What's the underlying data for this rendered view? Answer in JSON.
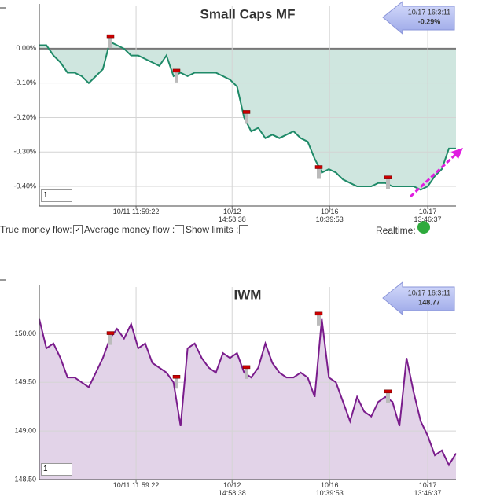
{
  "chart_data": [
    {
      "type": "area",
      "title": "Small Caps MF",
      "color": "#1f8a68",
      "fill": "#cfe6df",
      "annotation": [
        "10/17 16:3:11",
        "-0.29%"
      ],
      "range_input": "1",
      "values": [
        0.01,
        0.01,
        -0.02,
        -0.04,
        -0.07,
        -0.07,
        -0.08,
        -0.1,
        -0.08,
        -0.06,
        0.02,
        0.01,
        0.0,
        -0.02,
        -0.02,
        -0.03,
        -0.04,
        -0.05,
        -0.02,
        -0.08,
        -0.07,
        -0.08,
        -0.07,
        -0.07,
        -0.07,
        -0.07,
        -0.08,
        -0.09,
        -0.11,
        -0.2,
        -0.24,
        -0.23,
        -0.26,
        -0.25,
        -0.26,
        -0.25,
        -0.24,
        -0.26,
        -0.27,
        -0.32,
        -0.36,
        -0.35,
        -0.36,
        -0.38,
        -0.39,
        -0.4,
        -0.4,
        -0.4,
        -0.39,
        -0.39,
        -0.4,
        -0.4,
        -0.4,
        -0.4,
        -0.41,
        -0.4,
        -0.37,
        -0.35,
        -0.29,
        -0.29
      ],
      "xlim": [
        0,
        59
      ],
      "xticks": [
        {
          "value": 13.7,
          "label": "10/11 11:59:22"
        },
        {
          "value": 27.3,
          "label": "10/12 14:58:38"
        },
        {
          "value": 41.1,
          "label": "10/16 10:39:53"
        },
        {
          "value": 55,
          "label": "10/17 13:46:37"
        }
      ],
      "ylim": [
        -0.457,
        0.123
      ],
      "yticks": [
        {
          "value": 0,
          "label": "0.00%"
        },
        {
          "value": -0.1,
          "label": "-0.10%"
        },
        {
          "value": -0.2,
          "label": "-0.20%"
        },
        {
          "value": -0.3,
          "label": "-0.30%"
        },
        {
          "value": -0.4,
          "label": "-0.40%"
        }
      ],
      "grid": true
    },
    {
      "type": "area",
      "title": "IWM",
      "color": "#7a1c8c",
      "fill": "#e2d3e8",
      "annotation": [
        "10/17 16:3:11",
        "148.77"
      ],
      "range_input": "1",
      "values": [
        150.15,
        149.85,
        149.9,
        149.75,
        149.55,
        149.55,
        149.5,
        149.45,
        149.6,
        149.75,
        149.95,
        150.05,
        149.95,
        150.1,
        149.85,
        149.9,
        149.7,
        149.65,
        149.6,
        149.5,
        149.05,
        149.85,
        149.9,
        149.75,
        149.65,
        149.6,
        149.8,
        149.75,
        149.8,
        149.6,
        149.55,
        149.65,
        149.9,
        149.7,
        149.6,
        149.55,
        149.55,
        149.6,
        149.55,
        149.35,
        150.15,
        149.55,
        149.5,
        149.3,
        149.1,
        149.35,
        149.2,
        149.15,
        149.3,
        149.35,
        149.3,
        149.05,
        149.75,
        149.4,
        149.1,
        148.95,
        148.75,
        148.8,
        148.65,
        148.77
      ],
      "xlim": [
        0,
        59
      ],
      "xticks": [
        {
          "value": 13.7,
          "label": "10/11 11:59:22"
        },
        {
          "value": 27.3,
          "label": "10/12 14:58:38"
        },
        {
          "value": 41.1,
          "label": "10/16 10:39:53"
        },
        {
          "value": 55,
          "label": "10/17 13:46:37"
        }
      ],
      "ylim": [
        148.5,
        150.48
      ],
      "yticks": [
        {
          "value": 150,
          "label": "150.00"
        },
        {
          "value": 149.5,
          "label": "149.50"
        },
        {
          "value": 149,
          "label": "149.00"
        },
        {
          "value": 148.5,
          "label": "148.50"
        }
      ],
      "grid": true
    }
  ],
  "controls": {
    "true_money_flow": "True money flow:",
    "average_money_flow": "Average money flow :",
    "show_limits": "Show limits :",
    "realtime": "Realtime:"
  }
}
